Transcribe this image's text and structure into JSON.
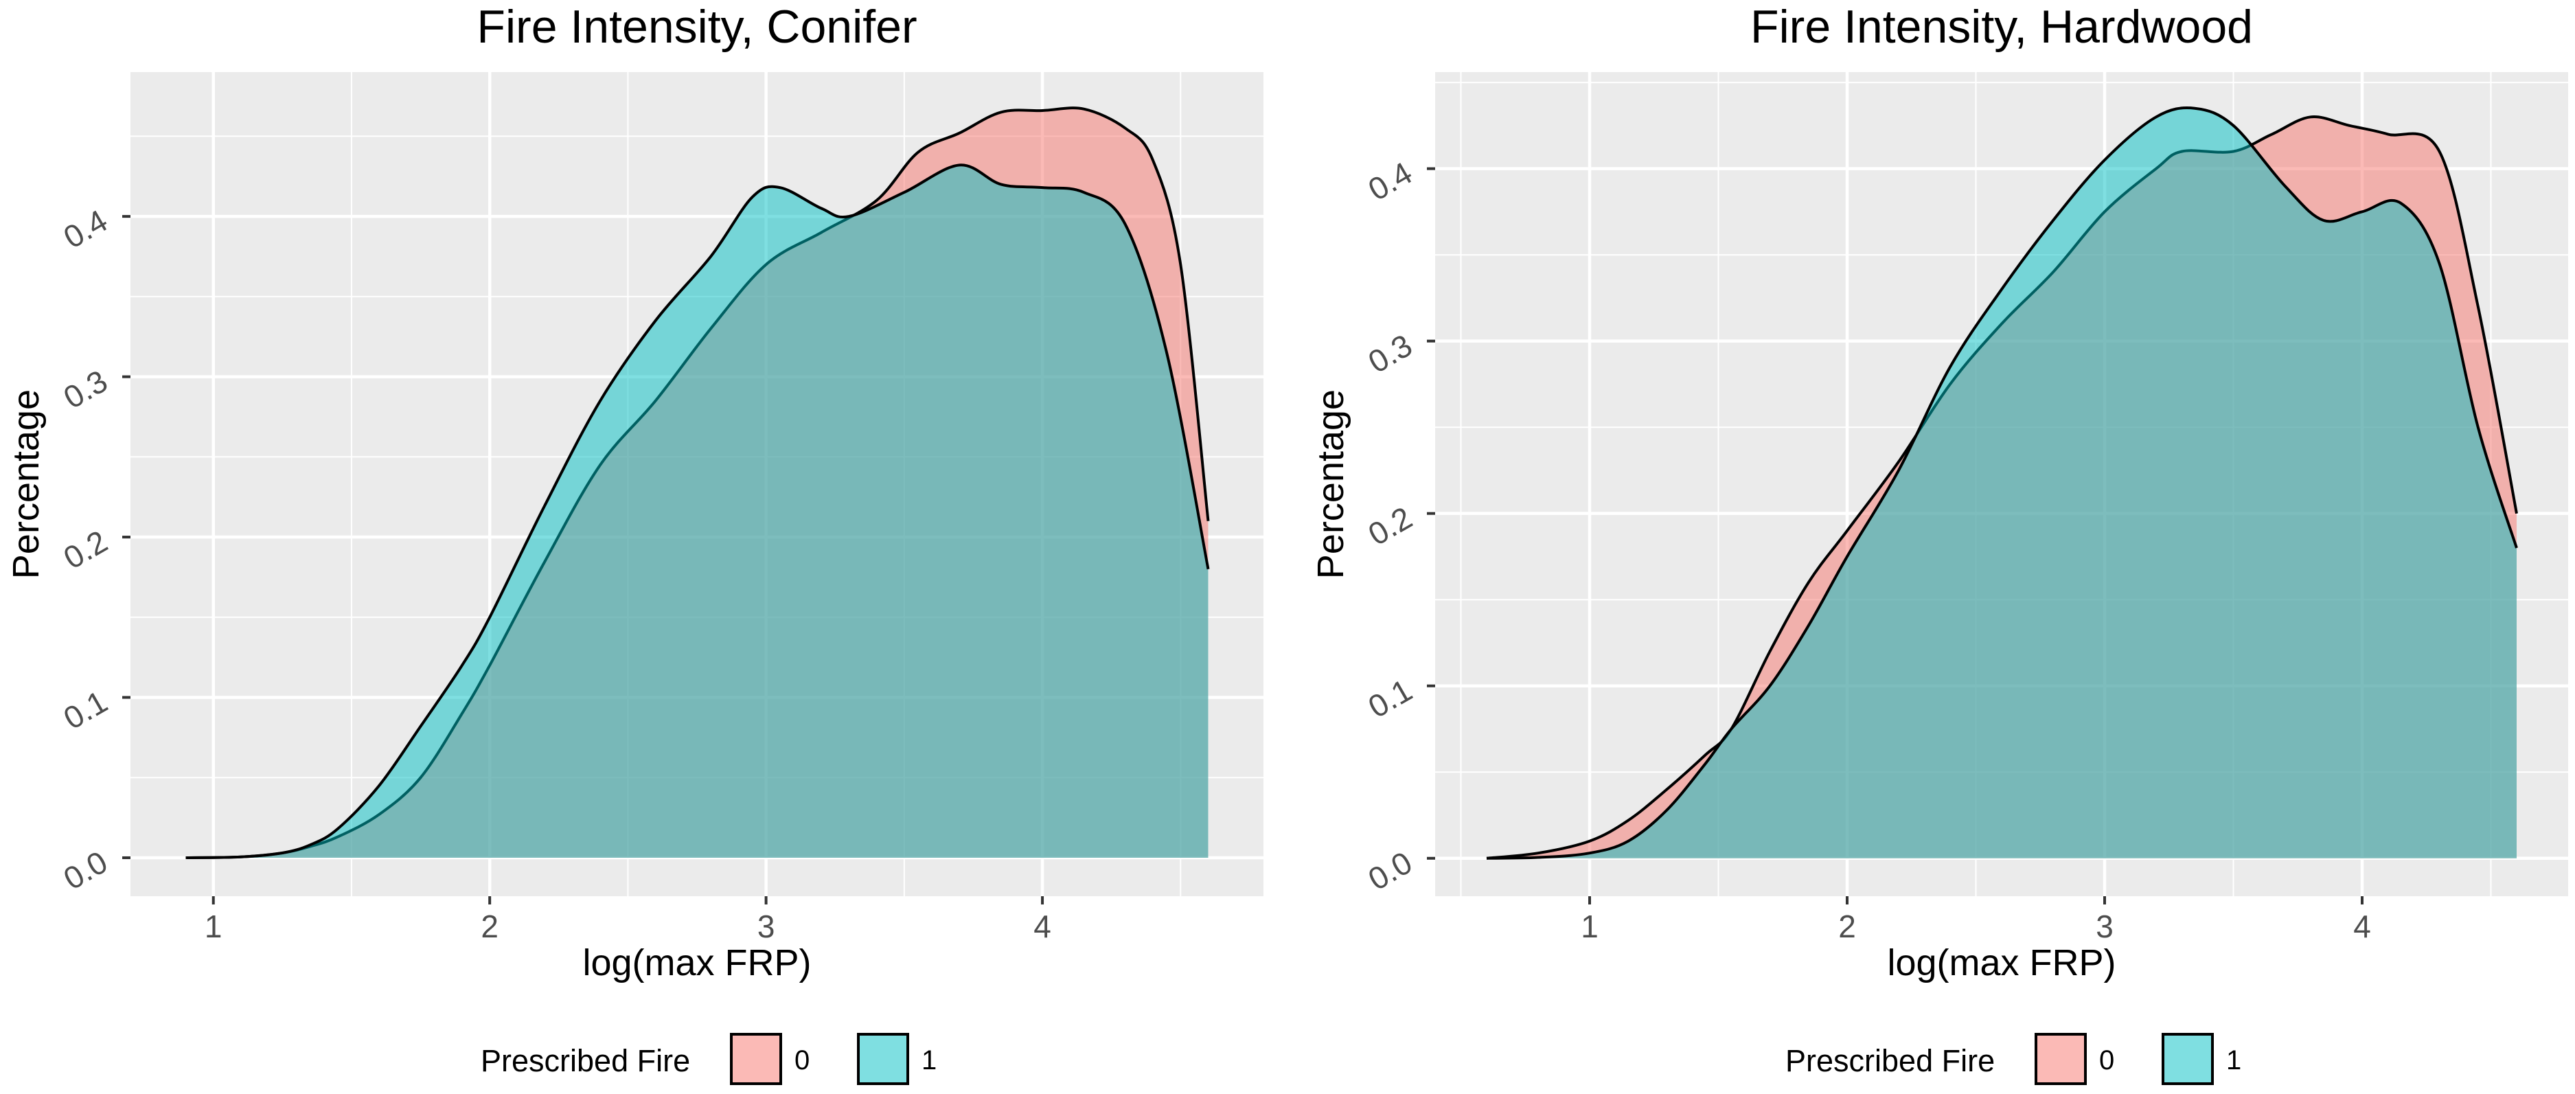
{
  "chart_data": [
    {
      "type": "area",
      "title": "Fire Intensity, Conifer",
      "xlabel": "log(max FRP)",
      "ylabel": "Percentage",
      "xlim": [
        0.7,
        4.8
      ],
      "ylim": [
        -0.024,
        0.49
      ],
      "xticks": [
        1,
        2,
        3,
        4
      ],
      "yticks": [
        0.0,
        0.1,
        0.2,
        0.3,
        0.4
      ],
      "xtick_labels": [
        "1",
        "2",
        "3",
        "4"
      ],
      "ytick_labels": [
        "0.0",
        "0.1",
        "0.2",
        "0.3",
        "0.4"
      ],
      "grid": true,
      "series": [
        {
          "name": "0",
          "color": "#F8766D",
          "points": [
            [
              0.9,
              0.0
            ],
            [
              1.1,
              0.0005
            ],
            [
              1.25,
              0.003
            ],
            [
              1.35,
              0.007
            ],
            [
              1.45,
              0.013
            ],
            [
              1.6,
              0.027
            ],
            [
              1.75,
              0.05
            ],
            [
              1.9,
              0.09
            ],
            [
              2.0,
              0.12
            ],
            [
              2.2,
              0.185
            ],
            [
              2.4,
              0.245
            ],
            [
              2.6,
              0.285
            ],
            [
              2.8,
              0.33
            ],
            [
              3.0,
              0.37
            ],
            [
              3.2,
              0.39
            ],
            [
              3.4,
              0.41
            ],
            [
              3.55,
              0.44
            ],
            [
              3.7,
              0.452
            ],
            [
              3.85,
              0.465
            ],
            [
              4.0,
              0.466
            ],
            [
              4.15,
              0.467
            ],
            [
              4.3,
              0.455
            ],
            [
              4.4,
              0.435
            ],
            [
              4.5,
              0.37
            ],
            [
              4.6,
              0.21
            ]
          ]
        },
        {
          "name": "1",
          "color": "#00BFC4",
          "points": [
            [
              0.9,
              0.0
            ],
            [
              1.1,
              0.0005
            ],
            [
              1.25,
              0.003
            ],
            [
              1.35,
              0.008
            ],
            [
              1.45,
              0.018
            ],
            [
              1.6,
              0.045
            ],
            [
              1.75,
              0.082
            ],
            [
              1.9,
              0.12
            ],
            [
              2.0,
              0.15
            ],
            [
              2.2,
              0.22
            ],
            [
              2.4,
              0.285
            ],
            [
              2.6,
              0.335
            ],
            [
              2.8,
              0.375
            ],
            [
              2.95,
              0.412
            ],
            [
              3.05,
              0.418
            ],
            [
              3.2,
              0.405
            ],
            [
              3.3,
              0.4
            ],
            [
              3.5,
              0.415
            ],
            [
              3.7,
              0.432
            ],
            [
              3.85,
              0.42
            ],
            [
              4.0,
              0.418
            ],
            [
              4.15,
              0.415
            ],
            [
              4.3,
              0.395
            ],
            [
              4.45,
              0.315
            ],
            [
              4.6,
              0.18
            ]
          ]
        }
      ],
      "legend": {
        "title": "Prescribed Fire",
        "entries": [
          "0",
          "1"
        ],
        "position": "bottom"
      }
    },
    {
      "type": "area",
      "title": "Fire Intensity, Hardwood",
      "xlabel": "log(max FRP)",
      "ylabel": "Percentage",
      "xlim": [
        0.4,
        4.8
      ],
      "ylim": [
        -0.022,
        0.456
      ],
      "xticks": [
        1,
        2,
        3,
        4
      ],
      "yticks": [
        0.0,
        0.1,
        0.2,
        0.3,
        0.4
      ],
      "xtick_labels": [
        "1",
        "2",
        "3",
        "4"
      ],
      "ytick_labels": [
        "0.0",
        "0.1",
        "0.2",
        "0.3",
        "0.4"
      ],
      "grid": true,
      "series": [
        {
          "name": "0",
          "color": "#F8766D",
          "points": [
            [
              0.6,
              0.0
            ],
            [
              0.8,
              0.003
            ],
            [
              1.0,
              0.01
            ],
            [
              1.15,
              0.022
            ],
            [
              1.3,
              0.04
            ],
            [
              1.45,
              0.06
            ],
            [
              1.55,
              0.075
            ],
            [
              1.7,
              0.12
            ],
            [
              1.85,
              0.16
            ],
            [
              2.0,
              0.19
            ],
            [
              2.2,
              0.23
            ],
            [
              2.4,
              0.275
            ],
            [
              2.6,
              0.31
            ],
            [
              2.8,
              0.34
            ],
            [
              3.0,
              0.375
            ],
            [
              3.2,
              0.4
            ],
            [
              3.3,
              0.41
            ],
            [
              3.5,
              0.41
            ],
            [
              3.65,
              0.42
            ],
            [
              3.8,
              0.43
            ],
            [
              3.95,
              0.425
            ],
            [
              4.1,
              0.42
            ],
            [
              4.3,
              0.41
            ],
            [
              4.45,
              0.32
            ],
            [
              4.6,
              0.2
            ]
          ]
        },
        {
          "name": "1",
          "color": "#00BFC4",
          "points": [
            [
              0.6,
              0.0
            ],
            [
              0.8,
              0.0005
            ],
            [
              1.0,
              0.003
            ],
            [
              1.15,
              0.01
            ],
            [
              1.3,
              0.028
            ],
            [
              1.45,
              0.055
            ],
            [
              1.55,
              0.075
            ],
            [
              1.7,
              0.1
            ],
            [
              1.85,
              0.135
            ],
            [
              2.0,
              0.175
            ],
            [
              2.2,
              0.225
            ],
            [
              2.4,
              0.285
            ],
            [
              2.6,
              0.33
            ],
            [
              2.8,
              0.37
            ],
            [
              3.0,
              0.405
            ],
            [
              3.2,
              0.43
            ],
            [
              3.35,
              0.435
            ],
            [
              3.5,
              0.425
            ],
            [
              3.7,
              0.39
            ],
            [
              3.85,
              0.37
            ],
            [
              4.0,
              0.375
            ],
            [
              4.15,
              0.38
            ],
            [
              4.3,
              0.345
            ],
            [
              4.45,
              0.25
            ],
            [
              4.6,
              0.18
            ]
          ]
        }
      ],
      "legend": {
        "title": "Prescribed Fire",
        "entries": [
          "0",
          "1"
        ],
        "position": "bottom"
      }
    }
  ]
}
